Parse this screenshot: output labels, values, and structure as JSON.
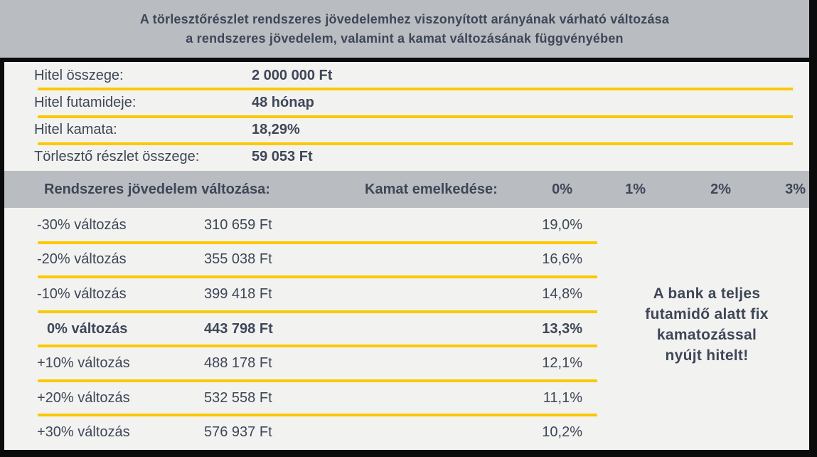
{
  "title": {
    "line1": "A törlesztőrészlet rendszeres jövedelemhez viszonyított arányának várható változása",
    "line2": "a rendszeres jövedelem, valamint a kamat változásának függvényében"
  },
  "loan_details": {
    "rows": [
      {
        "label": "Hitel összege:",
        "value": "2 000 000 Ft"
      },
      {
        "label": "Hitel futamideje:",
        "value": "48 hónap"
      },
      {
        "label": "Hitel kamata:",
        "value": "18,29%"
      },
      {
        "label": "Törlesztő részlet összege:",
        "value": "59 053 Ft"
      }
    ]
  },
  "table": {
    "header": {
      "income_change_label": "Rendszeres jövedelem változása:",
      "rate_increase_label": "Kamat emelkedése:",
      "rate_columns": [
        "0%",
        "1%",
        "2%",
        "3%"
      ]
    },
    "rows": [
      {
        "change": "-30% változás",
        "amount": "310 659 Ft",
        "ratio": "19,0%"
      },
      {
        "change": "-20% változás",
        "amount": "355 038 Ft",
        "ratio": "16,6%"
      },
      {
        "change": "-10% változás",
        "amount": "399 418 Ft",
        "ratio": "14,8%"
      },
      {
        "change": "0% változás",
        "amount": "443 798 Ft",
        "ratio": "13,3%"
      },
      {
        "change": "+10% változás",
        "amount": "488 178 Ft",
        "ratio": "12,1%"
      },
      {
        "change": "+20% változás",
        "amount": "532 558 Ft",
        "ratio": "11,1%"
      },
      {
        "change": "+30% változás",
        "amount": "576 937 Ft",
        "ratio": "10,2%"
      }
    ]
  },
  "note": {
    "lines": [
      "A bank a teljes",
      "futamidő alatt fix",
      "kamatozással",
      "nyújt hitelt!"
    ]
  },
  "colors": {
    "band_gray": "#b9bdc1",
    "text_navy": "#3f4658",
    "separator_yellow": "#fcc800",
    "background": "#f2f3f0",
    "frame_black": "#0b0b0b"
  }
}
